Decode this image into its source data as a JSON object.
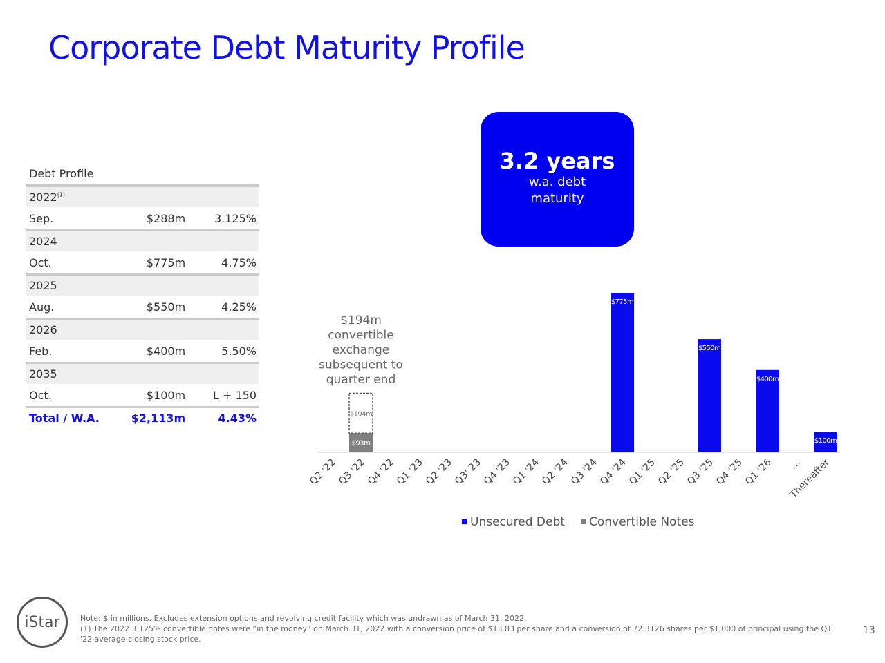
{
  "title": "Corporate Debt Maturity Profile",
  "table": {
    "title": "Debt Profile",
    "groups": [
      {
        "year": "2022",
        "mark": "(1)",
        "month": "Sep.",
        "amount": "$288m",
        "rate": "3.125%"
      },
      {
        "year": "2024",
        "month": "Oct.",
        "amount": "$775m",
        "rate": "4.75%"
      },
      {
        "year": "2025",
        "month": "Aug.",
        "amount": "$550m",
        "rate": "4.25%"
      },
      {
        "year": "2026",
        "month": "Feb.",
        "amount": "$400m",
        "rate": "5.50%"
      },
      {
        "year": "2035",
        "month": "Oct.",
        "amount": "$100m",
        "rate": "L + 150"
      }
    ],
    "total": [
      "Total / W.A.",
      "$2,113m",
      "4.43%"
    ]
  },
  "callout": {
    "headline": "3.2 years",
    "lines": [
      "w.a. debt",
      "maturity"
    ]
  },
  "chart_data": {
    "type": "bar",
    "stacked": true,
    "categories": [
      "Q2 '22",
      "Q3 '22",
      "Q4 '22",
      "Q1 '23",
      "Q2 '23",
      "Q3' 23",
      "Q4 '23",
      "Q1 '24",
      "Q2 '24",
      "Q3 '24",
      "Q4 '24",
      "Q1 '25",
      "Q2 '25",
      "Q3 '25",
      "Q4 '25",
      "Q1 '26",
      "…",
      "Thereafter"
    ],
    "series": [
      {
        "name": "Unsecured Debt",
        "color": "#0a0aee",
        "values": [
          null,
          null,
          null,
          null,
          null,
          null,
          null,
          null,
          null,
          null,
          775,
          null,
          null,
          550,
          null,
          400,
          null,
          100
        ],
        "value_labels": [
          null,
          null,
          null,
          null,
          null,
          null,
          null,
          null,
          null,
          null,
          "$775m",
          null,
          null,
          "$550m",
          null,
          "$400m",
          null,
          "$100m"
        ]
      },
      {
        "name": "Convertible Notes",
        "color": "#808080",
        "values": [
          null,
          93,
          null,
          null,
          null,
          null,
          null,
          null,
          null,
          null,
          null,
          null,
          null,
          null,
          null,
          null,
          null,
          null
        ],
        "value_labels": [
          null,
          "$93m",
          null,
          null,
          null,
          null,
          null,
          null,
          null,
          null,
          null,
          null,
          null,
          null,
          null,
          null,
          null,
          null
        ]
      }
    ],
    "exchange": {
      "values": [
        null,
        194,
        null,
        null,
        null,
        null,
        null,
        null,
        null,
        null,
        null,
        null,
        null,
        null,
        null,
        null,
        null,
        null
      ],
      "value_labels": [
        null,
        "$194m",
        null,
        null,
        null,
        null,
        null,
        null,
        null,
        null,
        null,
        null,
        null,
        null,
        null,
        null,
        null,
        null
      ]
    },
    "annotation": [
      "$194m",
      "convertible",
      "exchange",
      "subsequent to",
      "quarter end"
    ]
  },
  "notes": [
    "Note: $ in millions. Excludes extension options and revolving credit facility which was undrawn as of March 31, 2022.",
    "(1) The 2022 3.125% convertible notes were “in the money” on March 31, 2022 with a conversion price of $13.83 per share and a conversion of 72.3126 shares per $1,000 of principal using the Q1 '22 average closing stock price."
  ],
  "logo": "iStar",
  "page_number": "13"
}
